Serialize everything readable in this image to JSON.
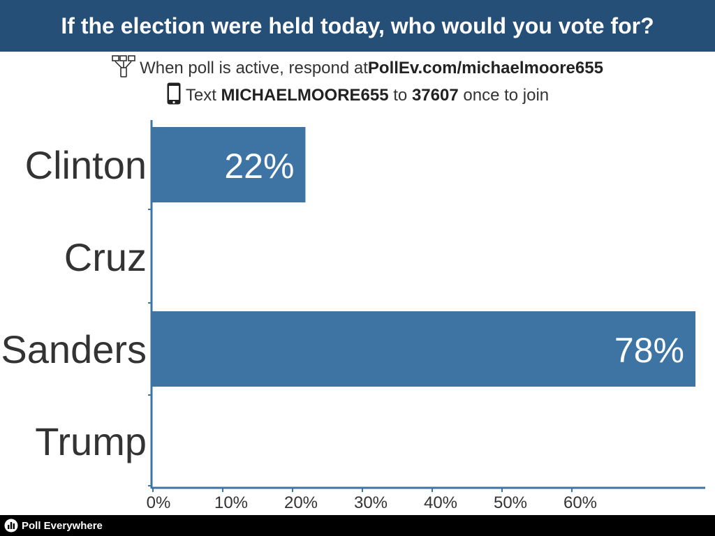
{
  "header": {
    "title": "If the election were held today, who would you vote for?"
  },
  "instructions": {
    "line1_prefix": "When poll is active, respond at ",
    "line1_url": "PollEv.com/michaelmoore655",
    "line2_prefix": "Text ",
    "line2_code": "MICHAELMOORE655",
    "line2_mid": " to ",
    "line2_number": "37607",
    "line2_suffix": " once to join"
  },
  "icons": {
    "line1": "network-devices-icon",
    "line2": "phone-icon",
    "footer": "poll-everywhere-logo-icon"
  },
  "colors": {
    "header_bg": "#264f78",
    "bar": "#3d74a3",
    "axis": "#3d74a3",
    "text": "#333333",
    "footer_bg": "#000000"
  },
  "chart_data": {
    "type": "bar",
    "orientation": "horizontal",
    "categories": [
      "Clinton",
      "Cruz",
      "Sanders",
      "Trump"
    ],
    "values": [
      22,
      0,
      78,
      0
    ],
    "data_labels": [
      "22%",
      "",
      "78%",
      ""
    ],
    "x_ticks": [
      "0%",
      "10%",
      "20%",
      "30%",
      "40%",
      "50%",
      "60%"
    ],
    "xlim": [
      0,
      78
    ],
    "grid": false
  },
  "footer": {
    "brand": "Poll Everywhere"
  }
}
